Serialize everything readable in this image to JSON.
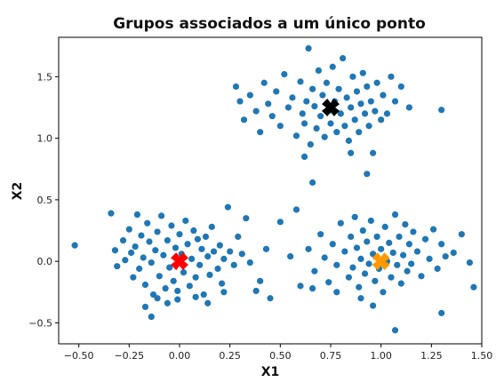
{
  "chart_data": {
    "type": "scatter",
    "title": "Grupos associados a um único ponto",
    "xlabel": "X1",
    "ylabel": "X2",
    "xlim": [
      -0.6,
      1.5
    ],
    "ylim": [
      -0.67,
      1.82
    ],
    "xticks": [
      -0.5,
      -0.25,
      0.0,
      0.25,
      0.5,
      0.75,
      1.0,
      1.25,
      1.5
    ],
    "xtick_labels": [
      "−0.50",
      "−0.25",
      "0.00",
      "0.25",
      "0.50",
      "0.75",
      "1.00",
      "1.25",
      "1.50"
    ],
    "yticks": [
      -0.5,
      0.0,
      0.5,
      1.0,
      1.5
    ],
    "ytick_labels": [
      "−0.5",
      "0.0",
      "0.5",
      "1.0",
      "1.5"
    ],
    "grid": false,
    "point_color": "#1f77b4",
    "points": [
      [
        -0.52,
        0.13
      ],
      [
        -0.34,
        0.39
      ],
      [
        -0.32,
        0.09
      ],
      [
        -0.31,
        -0.04
      ],
      [
        -0.28,
        0.17
      ],
      [
        -0.27,
        0.01
      ],
      [
        -0.25,
        0.26
      ],
      [
        -0.24,
        0.07
      ],
      [
        -0.23,
        -0.13
      ],
      [
        -0.22,
        0.12
      ],
      [
        -0.21,
        0.38
      ],
      [
        -0.2,
        -0.06
      ],
      [
        -0.19,
        0.21
      ],
      [
        -0.18,
        0.03
      ],
      [
        -0.17,
        -0.19
      ],
      [
        -0.16,
        0.31
      ],
      [
        -0.15,
        0.16
      ],
      [
        -0.14,
        -0.01
      ],
      [
        -0.13,
        -0.27
      ],
      [
        -0.12,
        0.09
      ],
      [
        -0.11,
        0.24
      ],
      [
        -0.1,
        -0.12
      ],
      [
        -0.09,
        0.37
      ],
      [
        -0.08,
        0.05
      ],
      [
        -0.07,
        -0.22
      ],
      [
        -0.06,
        0.17
      ],
      [
        -0.05,
        -0.05
      ],
      [
        -0.04,
        0.29
      ],
      [
        -0.03,
        -0.16
      ],
      [
        -0.02,
        0.11
      ],
      [
        -0.01,
        -0.31
      ],
      [
        0.0,
        0.22
      ],
      [
        0.01,
        0.06
      ],
      [
        0.02,
        -0.09
      ],
      [
        0.03,
        0.33
      ],
      [
        0.04,
        0.14
      ],
      [
        0.05,
        -0.2
      ],
      [
        0.06,
        0.02
      ],
      [
        0.07,
        0.25
      ],
      [
        0.08,
        -0.13
      ],
      [
        0.09,
        0.18
      ],
      [
        0.1,
        -0.03
      ],
      [
        0.11,
        0.1
      ],
      [
        0.12,
        -0.27
      ],
      [
        0.13,
        0.2
      ],
      [
        0.14,
        0.04
      ],
      [
        0.15,
        -0.11
      ],
      [
        0.16,
        0.28
      ],
      [
        0.17,
        0.08
      ],
      [
        0.19,
        -0.06
      ],
      [
        0.2,
        0.13
      ],
      [
        0.21,
        -0.18
      ],
      [
        0.22,
        0.02
      ],
      [
        0.24,
        0.44
      ],
      [
        0.25,
        0.08
      ],
      [
        0.27,
        -0.03
      ],
      [
        0.29,
        0.2
      ],
      [
        0.31,
        0.06
      ],
      [
        0.33,
        0.35
      ],
      [
        0.35,
        -0.01
      ],
      [
        -0.17,
        -0.37
      ],
      [
        -0.14,
        -0.45
      ],
      [
        -0.11,
        -0.3
      ],
      [
        -0.06,
        -0.34
      ],
      [
        -0.01,
        -0.24
      ],
      [
        0.08,
        -0.29
      ],
      [
        0.14,
        -0.34
      ],
      [
        0.22,
        -0.25
      ],
      [
        0.38,
        -0.24
      ],
      [
        0.4,
        -0.16
      ],
      [
        0.43,
        0.1
      ],
      [
        0.45,
        -0.3
      ],
      [
        0.5,
        0.32
      ],
      [
        0.28,
        1.42
      ],
      [
        0.3,
        1.3
      ],
      [
        0.32,
        1.15
      ],
      [
        0.35,
        1.35
      ],
      [
        0.38,
        1.22
      ],
      [
        0.4,
        1.05
      ],
      [
        0.42,
        1.45
      ],
      [
        0.44,
        1.28
      ],
      [
        0.46,
        1.18
      ],
      [
        0.48,
        1.38
      ],
      [
        0.5,
        1.1
      ],
      [
        0.52,
        1.52
      ],
      [
        0.54,
        1.25
      ],
      [
        0.56,
        1.33
      ],
      [
        0.58,
        1.02
      ],
      [
        0.6,
        1.46
      ],
      [
        0.61,
        1.2
      ],
      [
        0.62,
        1.12
      ],
      [
        0.63,
        1.3
      ],
      [
        0.64,
        1.73
      ],
      [
        0.65,
        0.95
      ],
      [
        0.66,
        1.4
      ],
      [
        0.67,
        1.26
      ],
      [
        0.68,
        1.08
      ],
      [
        0.69,
        1.55
      ],
      [
        0.7,
        1.18
      ],
      [
        0.71,
        1.35
      ],
      [
        0.72,
        1.01
      ],
      [
        0.73,
        1.45
      ],
      [
        0.74,
        1.22
      ],
      [
        0.75,
        1.12
      ],
      [
        0.76,
        1.58
      ],
      [
        0.77,
        1.3
      ],
      [
        0.78,
        1.05
      ],
      [
        0.79,
        1.4
      ],
      [
        0.8,
        1.2
      ],
      [
        0.81,
        1.65
      ],
      [
        0.82,
        1.1
      ],
      [
        0.83,
        1.33
      ],
      [
        0.84,
        0.98
      ],
      [
        0.85,
        1.25
      ],
      [
        0.86,
        1.5
      ],
      [
        0.87,
        1.15
      ],
      [
        0.88,
        1.38
      ],
      [
        0.89,
        1.05
      ],
      [
        0.9,
        1.28
      ],
      [
        0.91,
        1.53
      ],
      [
        0.92,
        1.2
      ],
      [
        0.93,
        1.42
      ],
      [
        0.94,
        1.1
      ],
      [
        0.95,
        1.3
      ],
      [
        0.96,
        0.88
      ],
      [
        0.97,
        1.22
      ],
      [
        0.98,
        1.45
      ],
      [
        1.0,
        1.15
      ],
      [
        1.01,
        1.35
      ],
      [
        1.03,
        1.2
      ],
      [
        1.05,
        1.5
      ],
      [
        1.07,
        1.3
      ],
      [
        1.1,
        1.42
      ],
      [
        1.14,
        1.25
      ],
      [
        1.3,
        1.23
      ],
      [
        0.62,
        0.85
      ],
      [
        0.66,
        0.64
      ],
      [
        0.85,
        0.88
      ],
      [
        0.93,
        0.71
      ],
      [
        0.55,
        0.04
      ],
      [
        0.58,
        0.42
      ],
      [
        0.6,
        -0.2
      ],
      [
        0.64,
        0.1
      ],
      [
        0.67,
        -0.08
      ],
      [
        0.7,
        0.22
      ],
      [
        0.72,
        0.03
      ],
      [
        0.74,
        -0.17
      ],
      [
        0.76,
        0.14
      ],
      [
        0.78,
        -0.03
      ],
      [
        0.8,
        0.31
      ],
      [
        0.82,
        0.08
      ],
      [
        0.84,
        -0.13
      ],
      [
        0.85,
        0.2
      ],
      [
        0.86,
        -0.05
      ],
      [
        0.87,
        0.36
      ],
      [
        0.88,
        0.11
      ],
      [
        0.89,
        -0.21
      ],
      [
        0.9,
        0.02
      ],
      [
        0.91,
        0.25
      ],
      [
        0.92,
        -0.1
      ],
      [
        0.93,
        0.16
      ],
      [
        0.94,
        -0.02
      ],
      [
        0.95,
        0.33
      ],
      [
        0.96,
        0.06
      ],
      [
        0.97,
        -0.16
      ],
      [
        0.98,
        0.2
      ],
      [
        0.99,
        -0.06
      ],
      [
        1.0,
        0.1
      ],
      [
        1.01,
        -0.25
      ],
      [
        1.02,
        0.28
      ],
      [
        1.03,
        0.0
      ],
      [
        1.04,
        0.15
      ],
      [
        1.05,
        -0.13
      ],
      [
        1.06,
        0.07
      ],
      [
        1.07,
        0.38
      ],
      [
        1.08,
        -0.03
      ],
      [
        1.09,
        0.2
      ],
      [
        1.1,
        -0.18
      ],
      [
        1.11,
        0.05
      ],
      [
        1.12,
        0.3
      ],
      [
        1.13,
        -0.08
      ],
      [
        1.14,
        0.14
      ],
      [
        1.15,
        -0.02
      ],
      [
        1.16,
        0.24
      ],
      [
        1.18,
        0.08
      ],
      [
        1.2,
        -0.12
      ],
      [
        1.22,
        0.18
      ],
      [
        1.24,
        0.02
      ],
      [
        1.26,
        0.26
      ],
      [
        1.28,
        -0.06
      ],
      [
        1.3,
        0.14
      ],
      [
        1.32,
        0.04
      ],
      [
        1.36,
        0.07
      ],
      [
        1.4,
        0.22
      ],
      [
        1.44,
        -0.01
      ],
      [
        1.46,
        -0.21
      ],
      [
        1.3,
        -0.42
      ],
      [
        1.07,
        -0.56
      ],
      [
        0.96,
        -0.36
      ],
      [
        0.9,
        -0.3
      ],
      [
        0.78,
        -0.25
      ],
      [
        0.66,
        -0.22
      ]
    ],
    "centroids": [
      {
        "x": 0.0,
        "y": 0.0,
        "color": "#ff0000"
      },
      {
        "x": 0.75,
        "y": 1.25,
        "color": "#000000"
      },
      {
        "x": 1.0,
        "y": 0.0,
        "color": "#ff9900"
      }
    ]
  }
}
